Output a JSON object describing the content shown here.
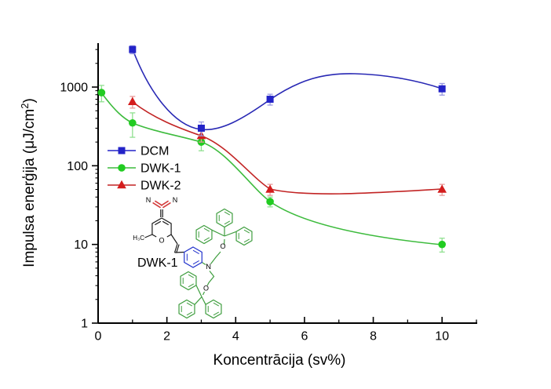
{
  "figure": {
    "background": "#ffffff"
  },
  "x_axis": {
    "title": "Koncentrācija (sv%)",
    "major_ticks": [
      0,
      2,
      4,
      6,
      8,
      10
    ],
    "minor_ticks": [
      1,
      3,
      5,
      7,
      9,
      11
    ],
    "range": [
      0,
      11
    ],
    "scale": "linear"
  },
  "y_axis": {
    "title_main": "Impulsa enerģija (μJ/cm",
    "title_sup": "2",
    "title_close": ")",
    "major_ticks": [
      1,
      10,
      100,
      1000
    ],
    "range": [
      1,
      3600
    ],
    "scale": "log"
  },
  "molecule": {
    "label": "DWK-1",
    "atoms": {
      "nitrile_left": "N",
      "nitrile_right": "N",
      "methyl": "H₃C",
      "pyran_o": "O",
      "amine_n": "N",
      "ether_o_top": "O",
      "ether_o_bottom": "O"
    }
  },
  "chart_data": {
    "type": "line",
    "title": "",
    "xlabel": "Koncentrācija (sv%)",
    "ylabel": "Impulsa enerģija (μJ/cm2)",
    "x_range": [
      0,
      11
    ],
    "y_range": [
      1,
      3600
    ],
    "y_scale": "log",
    "grid": false,
    "legend_position": "inside-left",
    "series": [
      {
        "name": "DCM",
        "marker": "square",
        "color": "#2323c8",
        "err_color": "#9a9ae2",
        "z": 3,
        "x": [
          1,
          3,
          5,
          10
        ],
        "y": [
          3000,
          300,
          700,
          950
        ],
        "y_err": [
          350,
          60,
          110,
          160
        ]
      },
      {
        "name": "DWK-1",
        "marker": "circle",
        "color": "#21cc21",
        "err_color": "#90e090",
        "z": 1,
        "x": [
          0.1,
          1,
          3,
          5,
          10
        ],
        "y": [
          850,
          350,
          200,
          35,
          10
        ],
        "y_err": [
          200,
          120,
          45,
          5,
          2
        ]
      },
      {
        "name": "DWK-2",
        "marker": "triangle",
        "color": "#d41d1d",
        "err_color": "#e89a9a",
        "z": 2,
        "x": [
          1,
          3,
          5,
          10
        ],
        "y": [
          650,
          240,
          50,
          50
        ],
        "y_err": [
          110,
          40,
          8,
          8
        ]
      }
    ]
  }
}
